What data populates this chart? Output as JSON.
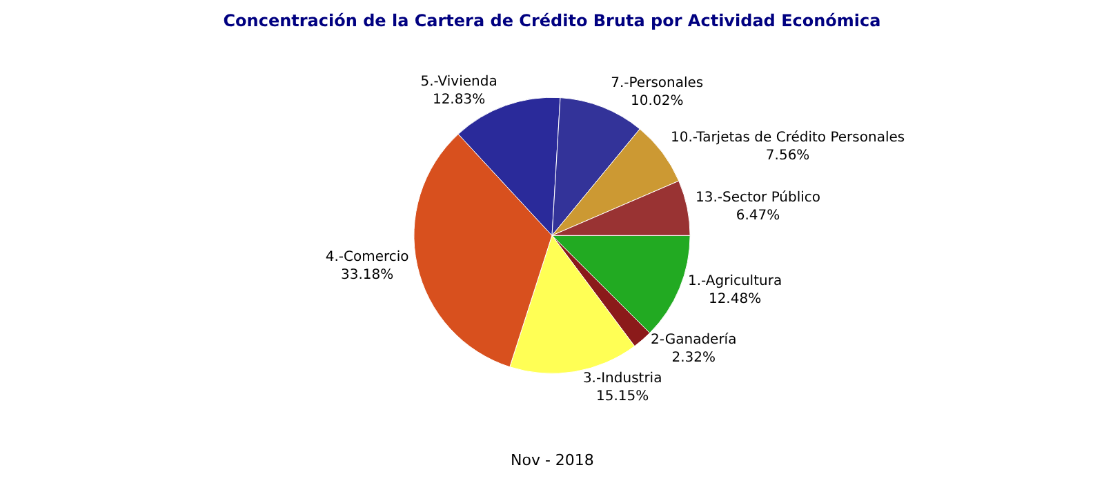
{
  "chart_data": {
    "type": "pie",
    "title": "Concentración de la Cartera de Crédito Bruta por Actividad Económica",
    "categories": [
      "1.-Agricultura",
      "2-Ganadería",
      "3.-Industria",
      "4.-Comercio",
      "5.-Vivienda",
      "7.-Personales",
      "10.-Tarjetas de Crédito Personales",
      "13.-Sector Público"
    ],
    "values": [
      12.48,
      2.32,
      15.15,
      33.18,
      12.83,
      10.02,
      7.56,
      6.47
    ],
    "colors": [
      "#22aa22",
      "#8b1a1a",
      "#ffff55",
      "#d8501e",
      "#2a2a9a",
      "#333399",
      "#cc9933",
      "#993333"
    ],
    "value_labels": [
      "12.48%",
      "2.32%",
      "15.15%",
      "33.18%",
      "12.83%",
      "10.02%",
      "7.56%",
      "6.47%"
    ],
    "annotations": [
      "Nov - 2018"
    ],
    "legend": false
  }
}
